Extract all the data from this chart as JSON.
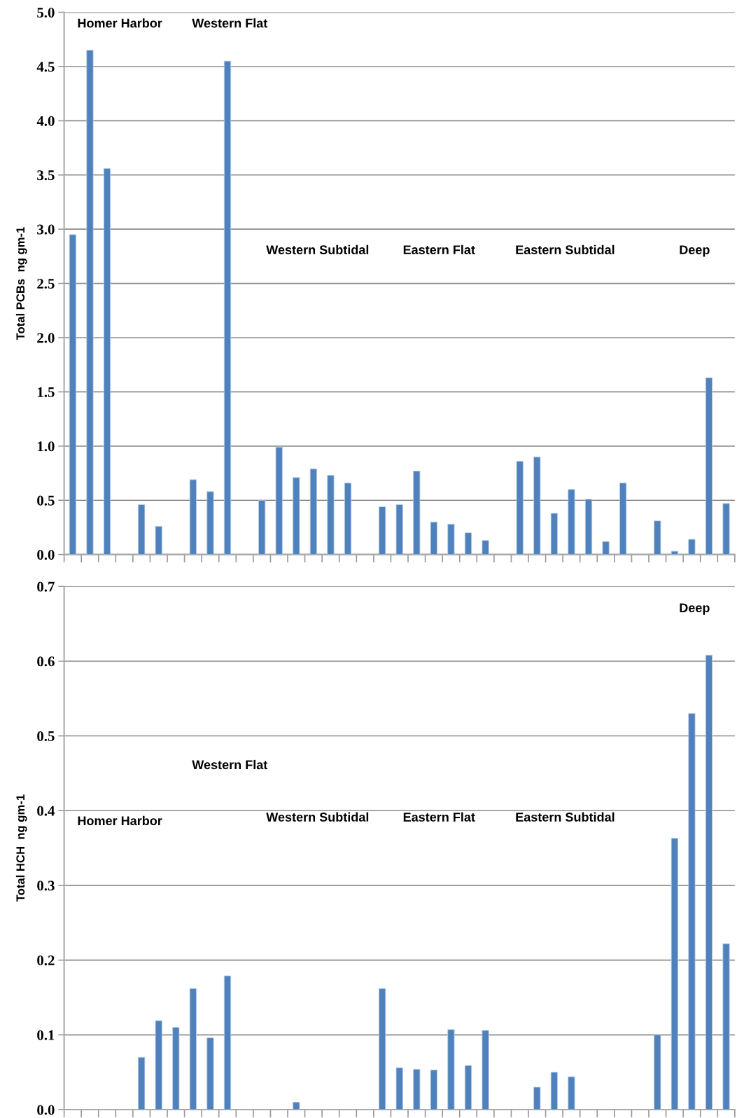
{
  "chart_data": [
    {
      "type": "bar",
      "ylabel": "Total PCBs  ng gm-1",
      "color": "#4f81bd",
      "grid": "y",
      "categories": [
        null,
        null,
        null,
        null,
        null,
        null,
        null,
        null,
        null,
        null,
        null,
        null,
        null,
        null,
        null,
        null,
        null,
        null,
        null,
        null,
        null,
        null,
        null,
        null,
        null,
        null,
        null,
        null,
        null,
        null,
        null,
        null,
        null,
        null,
        null,
        null,
        null,
        null,
        null
      ],
      "values": [
        2.95,
        4.65,
        3.56,
        null,
        0.46,
        0.26,
        null,
        0.69,
        0.58,
        4.55,
        null,
        0.5,
        0.99,
        0.71,
        0.79,
        0.73,
        0.66,
        null,
        0.44,
        0.46,
        0.77,
        0.3,
        0.28,
        0.2,
        0.13,
        null,
        0.86,
        0.9,
        0.38,
        0.6,
        0.51,
        0.12,
        0.66,
        null,
        0.31,
        0.03,
        0.14,
        1.63,
        0.47
      ],
      "ylim": [
        0,
        5
      ],
      "yticks": [
        {
          "value": 0,
          "label": "0.0"
        },
        0.5,
        {
          "value": 1,
          "label": "1.0"
        },
        1.5,
        {
          "value": 2,
          "label": "2.0"
        },
        2.5,
        {
          "value": 3,
          "label": "3.0"
        },
        3.5,
        {
          "value": 4,
          "label": "4.0"
        },
        4.5,
        {
          "value": 5,
          "label": "5.0"
        }
      ],
      "annotations": [
        "Homer Harbor",
        "Western Flat",
        "Western Subtidal",
        "Eastern Flat",
        "Eastern Subtidal",
        "Deep"
      ]
    },
    {
      "type": "bar",
      "ylabel": "Total HCH  ng gm-1",
      "color": "#4f81bd",
      "grid": "y",
      "categories": [
        null,
        null,
        null,
        null,
        null,
        null,
        null,
        null,
        null,
        null,
        null,
        null,
        null,
        null,
        null,
        null,
        null,
        null,
        null,
        null,
        null,
        null,
        null,
        null,
        null,
        null,
        null,
        null,
        null,
        null,
        null,
        null,
        null,
        null,
        null,
        null,
        null,
        null,
        null
      ],
      "values": [
        null,
        null,
        null,
        null,
        0.07,
        0.119,
        0.11,
        0.162,
        0.096,
        0.179,
        null,
        null,
        null,
        0.01,
        null,
        null,
        null,
        null,
        0.162,
        0.056,
        0.054,
        0.053,
        0.107,
        0.059,
        0.106,
        null,
        null,
        0.03,
        0.05,
        0.044,
        null,
        null,
        null,
        null,
        0.1,
        0.363,
        0.53,
        0.608,
        0.222
      ],
      "ylim": [
        0,
        0.7
      ],
      "yticks": [
        {
          "value": 0,
          "label": "0.0"
        },
        0.1,
        0.2,
        0.3,
        0.4,
        0.5,
        0.6,
        0.7
      ],
      "annotations": [
        "Homer Harbor",
        "Western Flat",
        "Western Subtidal",
        "Eastern Flat",
        "Eastern Subtidal",
        "Deep"
      ]
    }
  ]
}
